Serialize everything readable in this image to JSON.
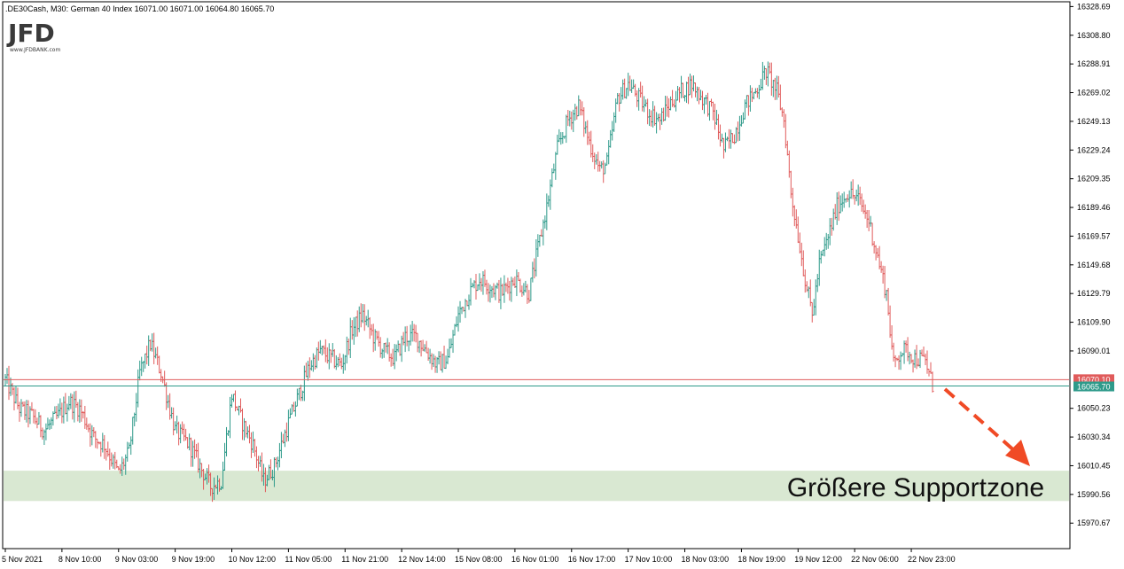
{
  "header": {
    "symbol": ".DE30Cash",
    "timeframe": "M30",
    "name": "German 40 Index",
    "ohlc": "16071.00 16071.00 16064.80 16065.70"
  },
  "logo": {
    "text": "JFD",
    "sub": "www.JFDBANK.com"
  },
  "annotation": "Größere Supportzone",
  "chart_data": {
    "type": "candlestick",
    "y_ticks": [
      "16328.69",
      "16308.80",
      "16288.91",
      "16269.02",
      "16249.13",
      "16229.24",
      "16209.35",
      "16189.46",
      "16169.57",
      "16149.68",
      "16129.79",
      "16109.90",
      "16090.01",
      "16050.23",
      "16030.34",
      "16010.45",
      "15990.56",
      "15970.67"
    ],
    "ylim": [
      15953,
      16332
    ],
    "x_ticks": [
      "5 Nov 2021",
      "8 Nov 10:00",
      "9 Nov 03:00",
      "9 Nov 19:00",
      "10 Nov 12:00",
      "11 Nov 05:00",
      "11 Nov 21:00",
      "12 Nov 14:00",
      "15 Nov 08:00",
      "16 Nov 01:00",
      "16 Nov 17:00",
      "17 Nov 10:00",
      "18 Nov 03:00",
      "18 Nov 19:00",
      "19 Nov 12:00",
      "22 Nov 06:00",
      "22 Nov 23:00"
    ],
    "x_tick_bars": [
      0,
      32,
      64,
      96,
      128,
      160,
      192,
      224,
      256,
      288,
      320,
      352,
      384,
      416,
      448,
      480,
      512
    ],
    "bar_count": 525,
    "bar_wave": [
      [
        0,
        16070
      ],
      [
        8,
        16050
      ],
      [
        15,
        16045
      ],
      [
        22,
        16035
      ],
      [
        30,
        16045
      ],
      [
        36,
        16055
      ],
      [
        42,
        16050
      ],
      [
        50,
        16030
      ],
      [
        56,
        16025
      ],
      [
        64,
        16005
      ],
      [
        70,
        16020
      ],
      [
        76,
        16075
      ],
      [
        82,
        16095
      ],
      [
        88,
        16075
      ],
      [
        96,
        16035
      ],
      [
        104,
        16025
      ],
      [
        110,
        16010
      ],
      [
        116,
        15996
      ],
      [
        122,
        16000
      ],
      [
        128,
        16060
      ],
      [
        134,
        16040
      ],
      [
        140,
        16025
      ],
      [
        146,
        16000
      ],
      [
        152,
        16010
      ],
      [
        160,
        16040
      ],
      [
        166,
        16060
      ],
      [
        172,
        16080
      ],
      [
        178,
        16090
      ],
      [
        184,
        16085
      ],
      [
        190,
        16080
      ],
      [
        196,
        16105
      ],
      [
        202,
        16115
      ],
      [
        208,
        16100
      ],
      [
        214,
        16090
      ],
      [
        220,
        16085
      ],
      [
        226,
        16100
      ],
      [
        232,
        16100
      ],
      [
        238,
        16090
      ],
      [
        244,
        16080
      ],
      [
        250,
        16085
      ],
      [
        256,
        16115
      ],
      [
        262,
        16130
      ],
      [
        268,
        16140
      ],
      [
        274,
        16135
      ],
      [
        280,
        16130
      ],
      [
        288,
        16140
      ],
      [
        296,
        16130
      ],
      [
        300,
        16155
      ],
      [
        306,
        16190
      ],
      [
        312,
        16230
      ],
      [
        318,
        16250
      ],
      [
        324,
        16260
      ],
      [
        330,
        16235
      ],
      [
        336,
        16215
      ],
      [
        340,
        16220
      ],
      [
        346,
        16265
      ],
      [
        352,
        16275
      ],
      [
        358,
        16265
      ],
      [
        364,
        16255
      ],
      [
        370,
        16250
      ],
      [
        376,
        16262
      ],
      [
        382,
        16270
      ],
      [
        388,
        16275
      ],
      [
        394,
        16265
      ],
      [
        400,
        16255
      ],
      [
        406,
        16230
      ],
      [
        412,
        16240
      ],
      [
        418,
        16260
      ],
      [
        424,
        16270
      ],
      [
        430,
        16284
      ],
      [
        436,
        16270
      ],
      [
        440,
        16250
      ],
      [
        444,
        16200
      ],
      [
        448,
        16170
      ],
      [
        452,
        16140
      ],
      [
        456,
        16115
      ],
      [
        460,
        16150
      ],
      [
        464,
        16165
      ],
      [
        470,
        16190
      ],
      [
        476,
        16200
      ],
      [
        482,
        16195
      ],
      [
        488,
        16180
      ],
      [
        494,
        16150
      ],
      [
        498,
        16130
      ],
      [
        502,
        16080
      ],
      [
        506,
        16090
      ],
      [
        510,
        16090
      ],
      [
        514,
        16085
      ],
      [
        520,
        16083
      ],
      [
        524,
        16066
      ]
    ],
    "price_lines": [
      {
        "label": "16070.10",
        "value": 16070.1,
        "color": "#e05b5b"
      },
      {
        "label": "16065.70",
        "value": 16065.7,
        "color": "#2e9a8a"
      }
    ],
    "support_zone": {
      "low": 15986,
      "high": 16007,
      "color": "#d9e8d2"
    },
    "colors": {
      "up": "#2e9a8a",
      "down": "#e05b5b"
    },
    "arrow_color": "#f04a25",
    "grid": false
  }
}
